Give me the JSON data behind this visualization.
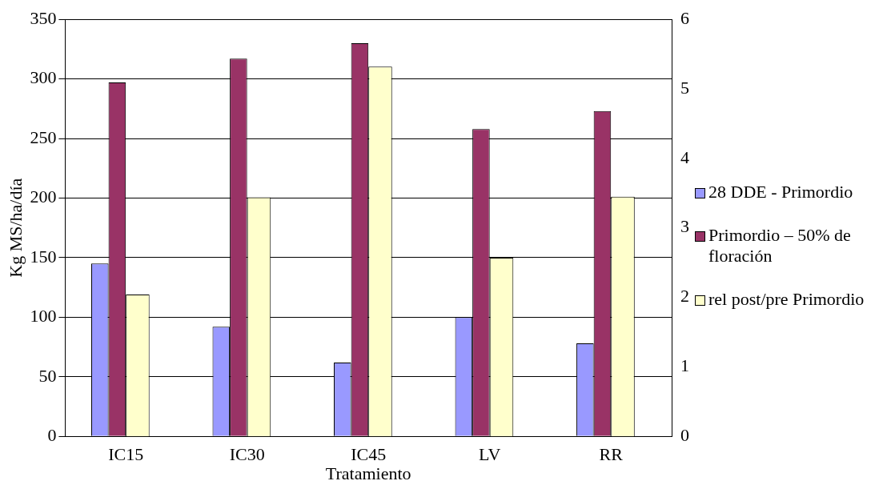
{
  "chart_data": {
    "type": "bar",
    "xlabel": "Tratamiento",
    "ylabel": "Kg MS/ha/día",
    "categories": [
      "IC15",
      "IC30",
      "IC45",
      "LV",
      "RR"
    ],
    "series": [
      {
        "name": "28 DDE - Primordio",
        "color": "#9999ff",
        "values": [
          145,
          92,
          62,
          100,
          78
        ]
      },
      {
        "name": "Primordio – 50% de floración",
        "color": "#993366",
        "values": [
          297,
          317,
          330,
          258,
          273
        ]
      },
      {
        "name": "rel post/pre Primordio",
        "color": "#ffffcc",
        "values": [
          2.04,
          3.44,
          5.32,
          2.57,
          3.45
        ],
        "axis": "y2"
      }
    ],
    "ylim": [
      0,
      350
    ],
    "yticks": [
      0,
      50,
      100,
      150,
      200,
      250,
      300,
      350
    ],
    "y2lim": [
      0,
      6
    ],
    "y2ticks": [
      0,
      1,
      2,
      3,
      4,
      5,
      6
    ],
    "grid": "y",
    "legend": "right"
  }
}
